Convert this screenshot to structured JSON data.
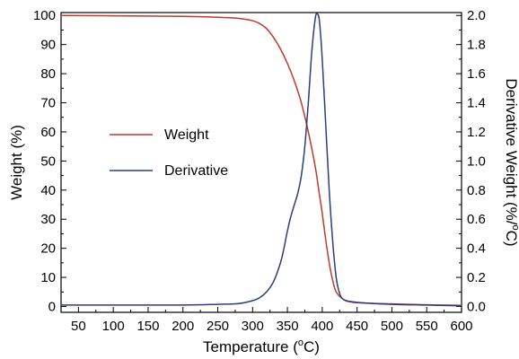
{
  "chart_data": {
    "type": "line",
    "title": "",
    "xlabel": "Temperature (",
    "xlabel_sup": "o",
    "xlabel_tail": "C)",
    "ylabel_left": "Weight (%)",
    "ylabel_right": "Derivative Weight (%/",
    "ylabel_right_sup": "o",
    "ylabel_right_tail": "C)",
    "xlim": [
      25,
      600
    ],
    "ylim_left": [
      -2,
      101
    ],
    "ylim_right": [
      -0.04,
      2.02
    ],
    "x_ticks": [
      50,
      100,
      150,
      200,
      250,
      300,
      350,
      400,
      450,
      500,
      550,
      600
    ],
    "y_left_ticks": [
      0,
      10,
      20,
      30,
      40,
      50,
      60,
      70,
      80,
      90,
      100
    ],
    "y_right_ticks": [
      0.0,
      0.2,
      0.4,
      0.6,
      0.8,
      1.0,
      1.2,
      1.4,
      1.6,
      1.8,
      2.0
    ],
    "y_right_tick_labels": [
      "0.0",
      "0.2",
      "0.4",
      "0.6",
      "0.8",
      "1.0",
      "1.2",
      "1.4",
      "1.6",
      "1.8",
      "2.0"
    ],
    "legend": {
      "placement": "middle-left",
      "entries": [
        "Weight",
        "Derivative"
      ]
    },
    "grid": false,
    "series": [
      {
        "name": "Weight",
        "axis": "left",
        "color": "#c0392b",
        "x": [
          25,
          100,
          200,
          250,
          280,
          300,
          310,
          320,
          330,
          340,
          350,
          360,
          370,
          380,
          390,
          395,
          400,
          405,
          410,
          415,
          420,
          430,
          440,
          460,
          500,
          550,
          600
        ],
        "y": [
          100,
          99.9,
          99.7,
          99.4,
          99.0,
          98.2,
          97.2,
          95.5,
          92.5,
          88.5,
          83.5,
          77.5,
          70,
          60,
          48,
          40,
          32,
          23,
          15,
          9,
          5,
          2.5,
          1.6,
          1.2,
          0.9,
          0.6,
          0.4
        ]
      },
      {
        "name": "Derivative",
        "axis": "right",
        "color": "#2c3e80",
        "x": [
          25,
          100,
          200,
          250,
          280,
          300,
          310,
          320,
          330,
          340,
          345,
          350,
          355,
          360,
          365,
          370,
          375,
          380,
          385,
          390,
          393,
          396,
          400,
          405,
          410,
          415,
          420,
          425,
          430,
          440,
          460,
          500,
          550,
          600
        ],
        "y": [
          0.01,
          0.01,
          0.01,
          0.015,
          0.02,
          0.04,
          0.06,
          0.1,
          0.17,
          0.3,
          0.4,
          0.52,
          0.62,
          0.7,
          0.78,
          0.9,
          1.1,
          1.4,
          1.75,
          1.98,
          2.01,
          1.96,
          1.7,
          1.25,
          0.8,
          0.45,
          0.2,
          0.09,
          0.05,
          0.035,
          0.025,
          0.015,
          0.01,
          0.005
        ]
      }
    ]
  }
}
